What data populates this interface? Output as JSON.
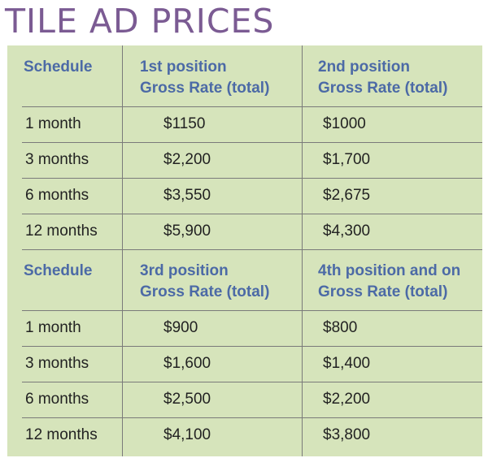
{
  "title": "TILE AD PRICES",
  "table1": {
    "headers": [
      "Schedule",
      "1st position",
      "Gross Rate (total)",
      "2nd position",
      "Gross Rate (total)"
    ],
    "rows": [
      [
        "1 month",
        "$1150",
        "$1000"
      ],
      [
        "3 months",
        "$2,200",
        "$1,700"
      ],
      [
        "6 months",
        "$3,550",
        "$2,675"
      ],
      [
        "12 months",
        "$5,900",
        "$4,300"
      ]
    ]
  },
  "table2": {
    "headers": [
      "Schedule",
      "3rd position",
      "Gross Rate (total)",
      "4th position and on",
      "Gross Rate (total)"
    ],
    "rows": [
      [
        "1 month",
        "$900",
        "$800"
      ],
      [
        "3 months",
        "$1,600",
        "$1,400"
      ],
      [
        "6 months",
        "$2,500",
        "$2,200"
      ],
      [
        "12 months",
        "$4,100",
        "$3,800"
      ]
    ]
  }
}
